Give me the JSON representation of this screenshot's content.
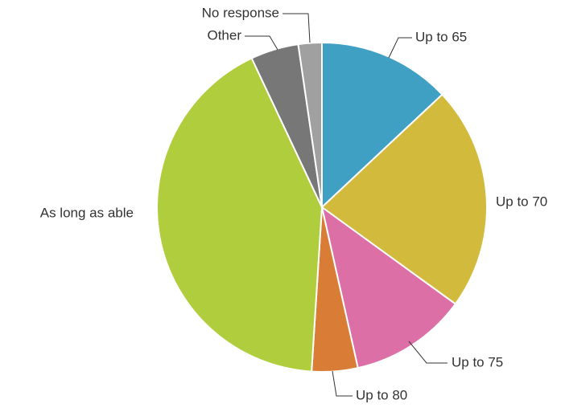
{
  "chart_data": {
    "type": "pie",
    "categories": [
      "Up to 65",
      "Up to 70",
      "Up to 75",
      "Up to 80",
      "As long as able",
      "Other",
      "No response"
    ],
    "values": [
      13,
      22,
      11.5,
      4.5,
      42,
      4.7,
      2.3
    ],
    "colors": [
      "#3fa0c4",
      "#d2bb3c",
      "#dc6fa5",
      "#d97d36",
      "#afcd3c",
      "#777777",
      "#a0a0a0"
    ]
  }
}
